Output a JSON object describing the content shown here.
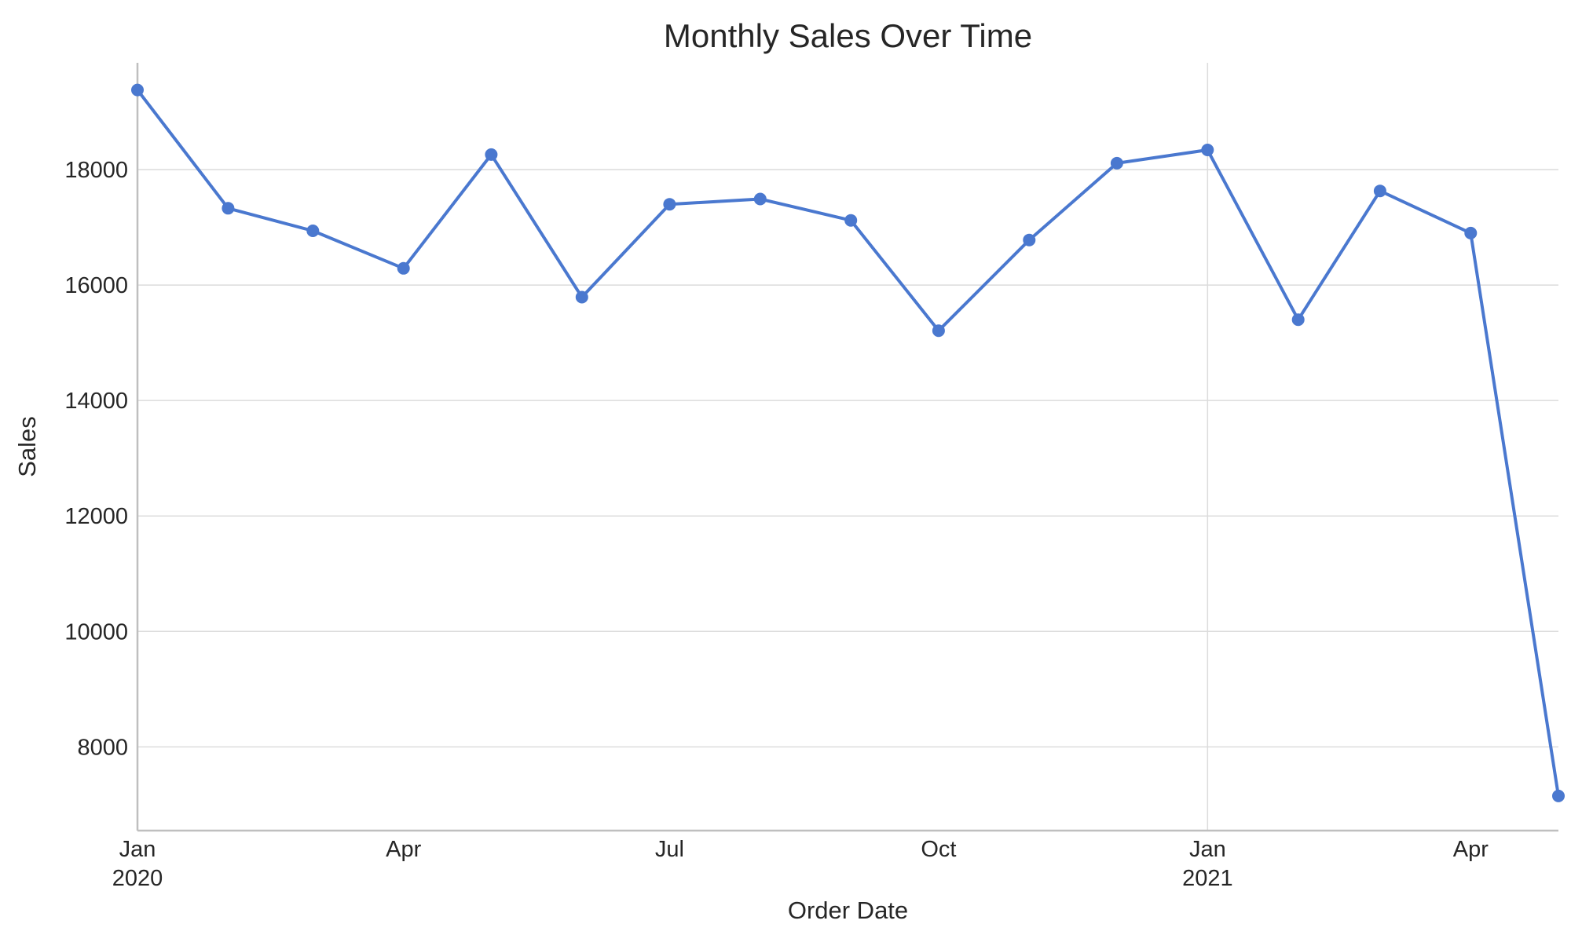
{
  "chart_data": {
    "type": "line",
    "title": "Monthly Sales Over Time",
    "xlabel": "Order Date",
    "ylabel": "Sales",
    "x_type": "date",
    "x_range": [
      "2020-01-01",
      "2021-05-01"
    ],
    "ylim": [
      6550,
      19850
    ],
    "grid": {
      "y": true,
      "x": "year boundaries only"
    },
    "legend": "none",
    "marker": "circle",
    "color": "#4a78cf",
    "x_ticks": [
      {
        "date": "2020-01-01",
        "label": "Jan",
        "sublabel": "2020"
      },
      {
        "date": "2020-04-01",
        "label": "Apr",
        "sublabel": ""
      },
      {
        "date": "2020-07-01",
        "label": "Jul",
        "sublabel": ""
      },
      {
        "date": "2020-10-01",
        "label": "Oct",
        "sublabel": ""
      },
      {
        "date": "2021-01-01",
        "label": "Jan",
        "sublabel": "2021"
      },
      {
        "date": "2021-04-01",
        "label": "Apr",
        "sublabel": ""
      }
    ],
    "y_ticks": [
      8000,
      10000,
      12000,
      14000,
      16000,
      18000
    ],
    "x": [
      "2020-01-01",
      "2020-02-01",
      "2020-03-01",
      "2020-04-01",
      "2020-05-01",
      "2020-06-01",
      "2020-07-01",
      "2020-08-01",
      "2020-09-01",
      "2020-10-01",
      "2020-11-01",
      "2020-12-01",
      "2021-01-01",
      "2021-02-01",
      "2021-03-01",
      "2021-04-01",
      "2021-05-01"
    ],
    "series": [
      {
        "values": [
          19380,
          17330,
          16940,
          16290,
          18260,
          15790,
          17400,
          17490,
          17120,
          15210,
          16780,
          18110,
          18340,
          15400,
          17630,
          16900,
          7150
        ]
      }
    ]
  }
}
